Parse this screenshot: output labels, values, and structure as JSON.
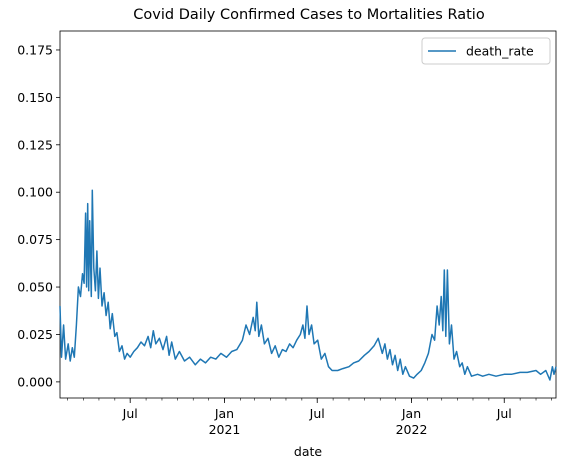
{
  "chart_data": {
    "type": "line",
    "title": "Covid Daily Confirmed Cases to Mortalities Ratio",
    "xlabel": "date",
    "ylabel": "",
    "x_range": [
      "2020-02-15",
      "2022-10-10"
    ],
    "ylim": [
      -0.0085,
      0.185
    ],
    "y_ticks": [
      0.0,
      0.025,
      0.05,
      0.075,
      0.1,
      0.125,
      0.15,
      0.175
    ],
    "y_tick_labels": [
      "0.000",
      "0.025",
      "0.050",
      "0.075",
      "0.100",
      "0.125",
      "0.150",
      "0.175"
    ],
    "x_ticks": [
      {
        "date": "2020-07-01",
        "label": "Jul",
        "sublabel": ""
      },
      {
        "date": "2021-01-01",
        "label": "Jan",
        "sublabel": "2021"
      },
      {
        "date": "2021-07-01",
        "label": "Jul",
        "sublabel": ""
      },
      {
        "date": "2022-01-01",
        "label": "Jan",
        "sublabel": "2022"
      },
      {
        "date": "2022-07-01",
        "label": "Jul",
        "sublabel": ""
      }
    ],
    "grid": false,
    "legend": {
      "placement": "top-right",
      "entries": [
        "death_rate"
      ]
    },
    "series": [
      {
        "name": "death_rate",
        "color": "#1f77b4",
        "points": [
          [
            "2020-02-15",
            0.04
          ],
          [
            "2020-02-18",
            0.013
          ],
          [
            "2020-02-22",
            0.03
          ],
          [
            "2020-02-26",
            0.012
          ],
          [
            "2020-03-02",
            0.02
          ],
          [
            "2020-03-06",
            0.011
          ],
          [
            "2020-03-10",
            0.018
          ],
          [
            "2020-03-14",
            0.013
          ],
          [
            "2020-03-18",
            0.03
          ],
          [
            "2020-03-22",
            0.05
          ],
          [
            "2020-03-26",
            0.045
          ],
          [
            "2020-03-30",
            0.057
          ],
          [
            "2020-04-02",
            0.052
          ],
          [
            "2020-04-05",
            0.089
          ],
          [
            "2020-04-07",
            0.05
          ],
          [
            "2020-04-09",
            0.094
          ],
          [
            "2020-04-11",
            0.048
          ],
          [
            "2020-04-13",
            0.085
          ],
          [
            "2020-04-16",
            0.045
          ],
          [
            "2020-04-18",
            0.101
          ],
          [
            "2020-04-21",
            0.06
          ],
          [
            "2020-04-24",
            0.048
          ],
          [
            "2020-04-27",
            0.069
          ],
          [
            "2020-04-30",
            0.044
          ],
          [
            "2020-05-03",
            0.06
          ],
          [
            "2020-05-07",
            0.04
          ],
          [
            "2020-05-11",
            0.047
          ],
          [
            "2020-05-15",
            0.035
          ],
          [
            "2020-05-19",
            0.042
          ],
          [
            "2020-05-23",
            0.028
          ],
          [
            "2020-05-27",
            0.036
          ],
          [
            "2020-06-01",
            0.024
          ],
          [
            "2020-06-05",
            0.026
          ],
          [
            "2020-06-10",
            0.016
          ],
          [
            "2020-06-15",
            0.019
          ],
          [
            "2020-06-20",
            0.012
          ],
          [
            "2020-06-25",
            0.015
          ],
          [
            "2020-07-01",
            0.013
          ],
          [
            "2020-07-08",
            0.016
          ],
          [
            "2020-07-15",
            0.018
          ],
          [
            "2020-07-22",
            0.021
          ],
          [
            "2020-07-29",
            0.019
          ],
          [
            "2020-08-05",
            0.024
          ],
          [
            "2020-08-10",
            0.018
          ],
          [
            "2020-08-15",
            0.027
          ],
          [
            "2020-08-20",
            0.02
          ],
          [
            "2020-08-27",
            0.023
          ],
          [
            "2020-09-03",
            0.017
          ],
          [
            "2020-09-10",
            0.024
          ],
          [
            "2020-09-15",
            0.014
          ],
          [
            "2020-09-20",
            0.021
          ],
          [
            "2020-09-27",
            0.012
          ],
          [
            "2020-10-05",
            0.016
          ],
          [
            "2020-10-15",
            0.011
          ],
          [
            "2020-10-25",
            0.013
          ],
          [
            "2020-11-05",
            0.009
          ],
          [
            "2020-11-15",
            0.012
          ],
          [
            "2020-11-25",
            0.01
          ],
          [
            "2020-12-05",
            0.013
          ],
          [
            "2020-12-15",
            0.012
          ],
          [
            "2020-12-25",
            0.015
          ],
          [
            "2021-01-05",
            0.013
          ],
          [
            "2021-01-15",
            0.016
          ],
          [
            "2021-01-25",
            0.017
          ],
          [
            "2021-02-05",
            0.022
          ],
          [
            "2021-02-12",
            0.03
          ],
          [
            "2021-02-19",
            0.025
          ],
          [
            "2021-02-26",
            0.034
          ],
          [
            "2021-03-02",
            0.027
          ],
          [
            "2021-03-05",
            0.042
          ],
          [
            "2021-03-09",
            0.024
          ],
          [
            "2021-03-14",
            0.03
          ],
          [
            "2021-03-20",
            0.02
          ],
          [
            "2021-03-27",
            0.023
          ],
          [
            "2021-04-03",
            0.015
          ],
          [
            "2021-04-10",
            0.019
          ],
          [
            "2021-04-17",
            0.013
          ],
          [
            "2021-04-24",
            0.017
          ],
          [
            "2021-05-01",
            0.016
          ],
          [
            "2021-05-08",
            0.02
          ],
          [
            "2021-05-15",
            0.018
          ],
          [
            "2021-05-22",
            0.022
          ],
          [
            "2021-05-29",
            0.025
          ],
          [
            "2021-06-03",
            0.03
          ],
          [
            "2021-06-07",
            0.023
          ],
          [
            "2021-06-11",
            0.04
          ],
          [
            "2021-06-15",
            0.025
          ],
          [
            "2021-06-20",
            0.03
          ],
          [
            "2021-06-25",
            0.02
          ],
          [
            "2021-07-02",
            0.022
          ],
          [
            "2021-07-09",
            0.012
          ],
          [
            "2021-07-16",
            0.015
          ],
          [
            "2021-07-23",
            0.008
          ],
          [
            "2021-07-30",
            0.006
          ],
          [
            "2021-08-10",
            0.006
          ],
          [
            "2021-08-20",
            0.007
          ],
          [
            "2021-09-01",
            0.008
          ],
          [
            "2021-09-10",
            0.01
          ],
          [
            "2021-09-20",
            0.011
          ],
          [
            "2021-10-01",
            0.014
          ],
          [
            "2021-10-10",
            0.016
          ],
          [
            "2021-10-20",
            0.019
          ],
          [
            "2021-10-28",
            0.023
          ],
          [
            "2021-11-05",
            0.015
          ],
          [
            "2021-11-10",
            0.02
          ],
          [
            "2021-11-15",
            0.012
          ],
          [
            "2021-11-20",
            0.017
          ],
          [
            "2021-11-25",
            0.009
          ],
          [
            "2021-11-30",
            0.014
          ],
          [
            "2021-12-05",
            0.006
          ],
          [
            "2021-12-10",
            0.012
          ],
          [
            "2021-12-15",
            0.004
          ],
          [
            "2021-12-20",
            0.008
          ],
          [
            "2021-12-28",
            0.003
          ],
          [
            "2022-01-05",
            0.002
          ],
          [
            "2022-01-12",
            0.004
          ],
          [
            "2022-01-20",
            0.006
          ],
          [
            "2022-01-27",
            0.01
          ],
          [
            "2022-02-03",
            0.015
          ],
          [
            "2022-02-10",
            0.025
          ],
          [
            "2022-02-15",
            0.022
          ],
          [
            "2022-02-20",
            0.04
          ],
          [
            "2022-02-24",
            0.03
          ],
          [
            "2022-02-28",
            0.045
          ],
          [
            "2022-03-03",
            0.027
          ],
          [
            "2022-03-06",
            0.059
          ],
          [
            "2022-03-09",
            0.024
          ],
          [
            "2022-03-12",
            0.059
          ],
          [
            "2022-03-16",
            0.02
          ],
          [
            "2022-03-20",
            0.03
          ],
          [
            "2022-03-25",
            0.012
          ],
          [
            "2022-03-30",
            0.016
          ],
          [
            "2022-04-05",
            0.008
          ],
          [
            "2022-04-10",
            0.01
          ],
          [
            "2022-04-15",
            0.004
          ],
          [
            "2022-04-20",
            0.008
          ],
          [
            "2022-04-28",
            0.003
          ],
          [
            "2022-05-10",
            0.004
          ],
          [
            "2022-05-20",
            0.003
          ],
          [
            "2022-06-01",
            0.004
          ],
          [
            "2022-06-15",
            0.003
          ],
          [
            "2022-07-01",
            0.004
          ],
          [
            "2022-07-15",
            0.004
          ],
          [
            "2022-08-01",
            0.005
          ],
          [
            "2022-08-15",
            0.005
          ],
          [
            "2022-09-01",
            0.006
          ],
          [
            "2022-09-10",
            0.004
          ],
          [
            "2022-09-20",
            0.006
          ],
          [
            "2022-09-28",
            0.001
          ],
          [
            "2022-10-03",
            0.008
          ],
          [
            "2022-10-06",
            0.004
          ],
          [
            "2022-10-10",
            0.008
          ]
        ]
      }
    ]
  }
}
